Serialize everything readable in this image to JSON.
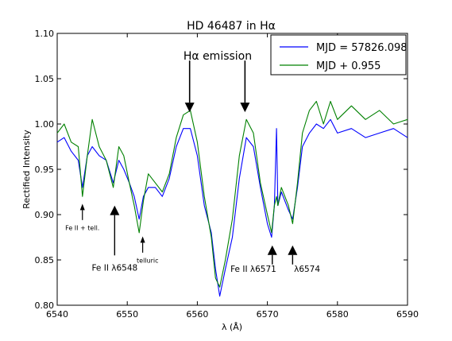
{
  "chart_data": {
    "type": "line",
    "title": "HD 46487 in Hα",
    "xlabel": "λ (Å)",
    "ylabel": "Rectified Intensity",
    "xlim": [
      6540,
      6590
    ],
    "ylim": [
      0.8,
      1.1
    ],
    "x_ticks": [
      6540,
      6550,
      6560,
      6570,
      6580,
      6590
    ],
    "x_tick_labels": [
      "6540",
      "6550",
      "6560",
      "6570",
      "6580",
      "6590"
    ],
    "y_ticks": [
      0.8,
      0.85,
      0.9,
      0.95,
      1.0,
      1.05,
      1.1
    ],
    "y_tick_labels": [
      "0.80",
      "0.85",
      "0.90",
      "0.95",
      "1.00",
      "1.05",
      "1.10"
    ],
    "grid": false,
    "legend_position": "top-right",
    "series": [
      {
        "name": "MJD = 57826.098",
        "color": "#0000ff",
        "x": [
          6540.0,
          6541.0,
          6542.0,
          6543.0,
          6543.6,
          6544.3,
          6545.0,
          6546.0,
          6547.0,
          6548.0,
          6548.8,
          6549.5,
          6550.3,
          6551.0,
          6551.7,
          6552.3,
          6553.0,
          6554.0,
          6555.0,
          6556.0,
          6557.0,
          6558.0,
          6559.0,
          6560.0,
          6561.0,
          6562.0,
          6562.6,
          6563.2,
          6564.0,
          6565.0,
          6566.0,
          6567.0,
          6568.0,
          6569.0,
          6570.0,
          6570.6,
          6571.0,
          6571.3,
          6571.5,
          6572.0,
          6573.0,
          6573.6,
          6574.3,
          6575.0,
          6576.0,
          6577.0,
          6578.0,
          6579.0,
          6580.0,
          6582.0,
          6584.0,
          6586.0,
          6588.0,
          6590.0
        ],
        "y": [
          0.98,
          0.985,
          0.97,
          0.96,
          0.93,
          0.965,
          0.975,
          0.965,
          0.96,
          0.935,
          0.96,
          0.95,
          0.935,
          0.92,
          0.895,
          0.92,
          0.93,
          0.93,
          0.92,
          0.94,
          0.975,
          0.995,
          0.995,
          0.965,
          0.91,
          0.88,
          0.84,
          0.81,
          0.84,
          0.875,
          0.94,
          0.985,
          0.975,
          0.93,
          0.89,
          0.875,
          0.91,
          0.995,
          0.91,
          0.925,
          0.905,
          0.895,
          0.93,
          0.975,
          0.99,
          1.0,
          0.995,
          1.005,
          0.99,
          0.995,
          0.985,
          0.99,
          0.995,
          0.985
        ]
      },
      {
        "name": "MJD + 0.955",
        "color": "#008000",
        "x": [
          6540.0,
          6541.0,
          6542.0,
          6543.0,
          6543.6,
          6544.3,
          6545.0,
          6546.0,
          6547.0,
          6548.0,
          6548.8,
          6549.5,
          6550.3,
          6551.0,
          6551.7,
          6552.3,
          6553.0,
          6554.0,
          6555.0,
          6556.0,
          6557.0,
          6558.0,
          6559.0,
          6560.0,
          6561.0,
          6562.0,
          6562.6,
          6563.2,
          6564.0,
          6565.0,
          6566.0,
          6567.0,
          6568.0,
          6569.0,
          6570.0,
          6570.6,
          6571.0,
          6571.3,
          6571.5,
          6572.0,
          6573.0,
          6573.6,
          6574.3,
          6575.0,
          6576.0,
          6577.0,
          6578.0,
          6579.0,
          6580.0,
          6582.0,
          6584.0,
          6586.0,
          6588.0,
          6590.0
        ],
        "y": [
          0.99,
          1.0,
          0.98,
          0.975,
          0.92,
          0.965,
          1.005,
          0.975,
          0.96,
          0.93,
          0.975,
          0.965,
          0.935,
          0.91,
          0.88,
          0.915,
          0.945,
          0.935,
          0.925,
          0.945,
          0.985,
          1.01,
          1.015,
          0.98,
          0.92,
          0.875,
          0.83,
          0.82,
          0.85,
          0.895,
          0.965,
          1.005,
          0.99,
          0.935,
          0.9,
          0.88,
          0.91,
          0.92,
          0.91,
          0.93,
          0.91,
          0.89,
          0.935,
          0.99,
          1.015,
          1.025,
          1.0,
          1.025,
          1.005,
          1.02,
          1.005,
          1.015,
          1.0,
          1.005
        ]
      }
    ],
    "annotations": [
      {
        "id": "fe2-tell",
        "text": "Fe II + tell.",
        "arrow_x": 6543.6,
        "arrow_from_y": 0.894,
        "arrow_to_y": 0.912,
        "text_x": 6543.6,
        "text_y": 0.883,
        "size": "small"
      },
      {
        "id": "fe2-6548",
        "text": "Fe II λ6548",
        "arrow_x": 6548.2,
        "arrow_from_y": 0.855,
        "arrow_to_y": 0.91,
        "text_x": 6548.2,
        "text_y": 0.838,
        "size": "medium"
      },
      {
        "id": "telluric",
        "text": "telluric",
        "arrow_x": 6552.2,
        "arrow_from_y": 0.858,
        "arrow_to_y": 0.876,
        "text_x": 6552.9,
        "text_y": 0.847,
        "size": "small"
      },
      {
        "id": "halpha-left",
        "text": "",
        "arrow_x": 6558.9,
        "arrow_from_y": 1.07,
        "arrow_to_y": 1.013,
        "text_x": 6558.9,
        "text_y": 1.07,
        "size": "big"
      },
      {
        "id": "halpha-right",
        "text": "",
        "arrow_x": 6566.8,
        "arrow_from_y": 1.07,
        "arrow_to_y": 1.013,
        "text_x": 6566.8,
        "text_y": 1.07,
        "size": "big"
      },
      {
        "id": "fe2-6571",
        "text": "Fe II λ6571",
        "arrow_x": 6570.7,
        "arrow_from_y": 0.845,
        "arrow_to_y": 0.866,
        "text_x": 6568.0,
        "text_y": 0.837,
        "size": "medium"
      },
      {
        "id": "fe2-6574",
        "text": "λ6574",
        "arrow_x": 6573.6,
        "arrow_from_y": 0.845,
        "arrow_to_y": 0.866,
        "text_x": 6573.8,
        "text_y": 0.837,
        "size": "medium"
      }
    ],
    "halpha_label": "Hα emission"
  }
}
